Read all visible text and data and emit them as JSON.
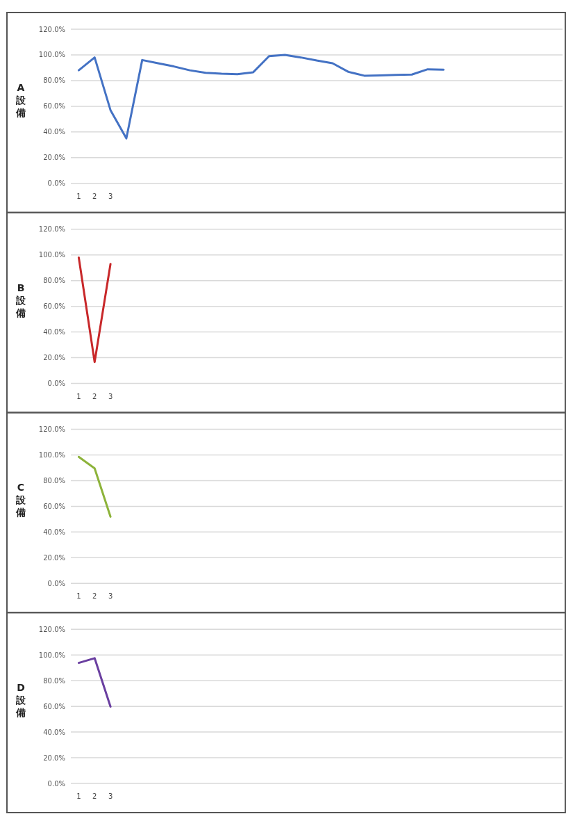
{
  "chart_data": [
    {
      "type": "line",
      "ylabel": "A設備",
      "categories": [
        "1",
        "2",
        "3",
        null,
        null,
        null,
        null,
        null,
        null,
        null,
        null,
        null,
        null,
        null,
        null,
        null,
        null,
        null,
        null,
        null,
        null,
        null,
        null,
        null,
        null,
        null,
        null,
        null,
        null,
        null,
        null
      ],
      "series": [
        {
          "color": "#4472c4",
          "values": [
            88,
            98,
            57,
            35,
            96,
            93.5,
            91,
            88,
            86,
            85.3,
            85,
            86.5,
            99,
            100,
            98,
            95.6,
            93.5,
            86.8,
            83.8,
            84,
            84.4,
            84.7,
            88.8,
            88.5,
            null,
            null,
            null,
            null,
            null,
            null,
            null
          ]
        }
      ],
      "ylim": [
        0,
        120
      ],
      "yticks": [
        {
          "value": 0,
          "label": "0.0%"
        },
        {
          "value": 20,
          "label": "20.0%"
        },
        {
          "value": 40,
          "label": "40.0%"
        },
        {
          "value": 60,
          "label": "60.0%"
        },
        {
          "value": 80,
          "label": "80.0%"
        },
        {
          "value": 100,
          "label": "100.0%"
        },
        {
          "value": 120,
          "label": "120.0%"
        }
      ],
      "grid": "y"
    },
    {
      "type": "line",
      "ylabel": "B設備",
      "categories": [
        "1",
        "2",
        "3",
        null,
        null,
        null,
        null,
        null,
        null,
        null,
        null,
        null,
        null,
        null,
        null,
        null,
        null,
        null,
        null,
        null,
        null,
        null,
        null,
        null,
        null,
        null,
        null,
        null,
        null,
        null,
        null
      ],
      "series": [
        {
          "color": "#c8282a",
          "values": [
            98,
            16.6,
            93,
            null,
            null,
            null,
            null,
            null,
            null,
            null,
            null,
            null,
            null,
            null,
            null,
            null,
            null,
            null,
            null,
            null,
            null,
            null,
            null,
            null,
            null,
            null,
            null,
            null,
            null,
            null,
            null
          ]
        }
      ],
      "ylim": [
        0,
        120
      ],
      "yticks": [
        {
          "value": 0,
          "label": "0.0%"
        },
        {
          "value": 20,
          "label": "20.0%"
        },
        {
          "value": 40,
          "label": "40.0%"
        },
        {
          "value": 60,
          "label": "60.0%"
        },
        {
          "value": 80,
          "label": "80.0%"
        },
        {
          "value": 100,
          "label": "100.0%"
        },
        {
          "value": 120,
          "label": "120.0%"
        }
      ],
      "grid": "y"
    },
    {
      "type": "line",
      "ylabel": "C設備",
      "categories": [
        "1",
        "2",
        "3",
        null,
        null,
        null,
        null,
        null,
        null,
        null,
        null,
        null,
        null,
        null,
        null,
        null,
        null,
        null,
        null,
        null,
        null,
        null,
        null,
        null,
        null,
        null,
        null,
        null,
        null,
        null,
        null
      ],
      "series": [
        {
          "color": "#8db33a",
          "values": [
            98.5,
            89.6,
            51.9,
            null,
            null,
            null,
            null,
            null,
            null,
            null,
            null,
            null,
            null,
            null,
            null,
            null,
            null,
            null,
            null,
            null,
            null,
            null,
            null,
            null,
            null,
            null,
            null,
            null,
            null,
            null,
            null
          ]
        }
      ],
      "ylim": [
        0,
        120
      ],
      "yticks": [
        {
          "value": 0,
          "label": "0.0%"
        },
        {
          "value": 20,
          "label": "20.0%"
        },
        {
          "value": 40,
          "label": "40.0%"
        },
        {
          "value": 60,
          "label": "60.0%"
        },
        {
          "value": 80,
          "label": "80.0%"
        },
        {
          "value": 100,
          "label": "100.0%"
        },
        {
          "value": 120,
          "label": "120.0%"
        }
      ],
      "grid": "y"
    },
    {
      "type": "line",
      "ylabel": "D設備",
      "categories": [
        "1",
        "2",
        "3",
        null,
        null,
        null,
        null,
        null,
        null,
        null,
        null,
        null,
        null,
        null,
        null,
        null,
        null,
        null,
        null,
        null,
        null,
        null,
        null,
        null,
        null,
        null,
        null,
        null,
        null,
        null,
        null
      ],
      "series": [
        {
          "color": "#6a3fa0",
          "values": [
            93.8,
            97.5,
            59.8,
            null,
            null,
            null,
            null,
            null,
            null,
            null,
            null,
            null,
            null,
            null,
            null,
            null,
            null,
            null,
            null,
            null,
            null,
            null,
            null,
            null,
            null,
            null,
            null,
            null,
            null,
            null,
            null
          ]
        }
      ],
      "ylim": [
        0,
        120
      ],
      "yticks": [
        {
          "value": 0,
          "label": "0.0%"
        },
        {
          "value": 20,
          "label": "20.0%"
        },
        {
          "value": 40,
          "label": "40.0%"
        },
        {
          "value": 60,
          "label": "60.0%"
        },
        {
          "value": 80,
          "label": "80.0%"
        },
        {
          "value": 100,
          "label": "100.0%"
        },
        {
          "value": 120,
          "label": "120.0%"
        }
      ],
      "grid": "y"
    }
  ]
}
